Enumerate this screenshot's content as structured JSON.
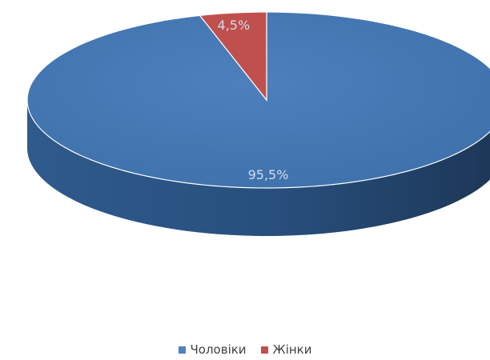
{
  "chart_data": {
    "type": "pie",
    "title": "",
    "style": "3d",
    "slices": [
      {
        "name": "Чоловіки",
        "value": 95.5,
        "label": "95,5%",
        "color": "#4f81bd"
      },
      {
        "name": "Жінки",
        "value": 4.5,
        "label": "4,5%",
        "color": "#c0504d"
      }
    ],
    "legend": {
      "position": "bottom"
    }
  }
}
